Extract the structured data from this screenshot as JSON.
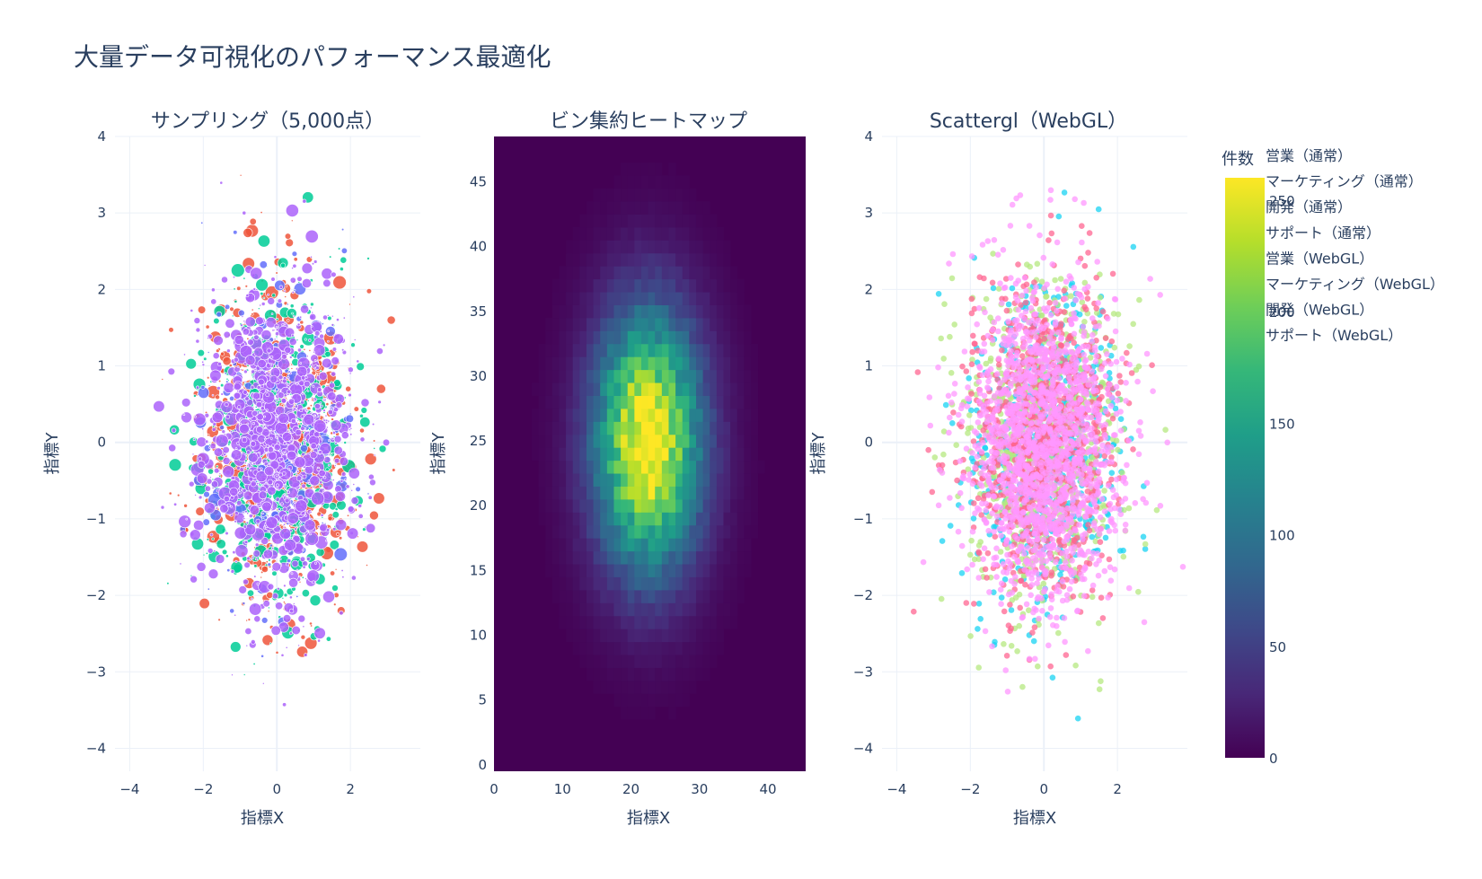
{
  "title": "大量データ可視化のパフォーマンス最適化",
  "colors": {
    "sales_normal": "#ef553b",
    "marketing_normal": "#00cc96",
    "dev_normal": "#ab63fa",
    "support_normal": "#636efa",
    "sales_webgl": "#ff6692",
    "marketing_webgl": "#b6e880",
    "dev_webgl": "#19d3f3",
    "support_webgl": "#ff97ff",
    "viridis": [
      "#440154",
      "#482878",
      "#3e4989",
      "#31688e",
      "#26828e",
      "#1f9e89",
      "#35b779",
      "#6ece58",
      "#b5de2b",
      "#fde725"
    ]
  },
  "chart_data": [
    {
      "type": "scatter",
      "title": "サンプリング（5,000点）",
      "xlabel": "指標X",
      "ylabel": "指標Y",
      "xlim": [
        -4.4,
        3.9
      ],
      "ylim": [
        -4.3,
        4.0
      ],
      "xticks": [
        "−4",
        "−2",
        "0",
        "2"
      ],
      "xtick_values": [
        -4,
        -2,
        0,
        2
      ],
      "yticks": [
        "−4",
        "−3",
        "−2",
        "−1",
        "0",
        "1",
        "2",
        "3",
        "4"
      ],
      "ytick_values": [
        -4,
        -3,
        -2,
        -1,
        0,
        1,
        2,
        3,
        4
      ],
      "grid": true,
      "series": [
        {
          "name": "営業（通常）",
          "x_mean": 0,
          "y_mean": 0,
          "x_std": 1,
          "y_std": 1
        },
        {
          "name": "マーケティング（通常）",
          "x_mean": 0,
          "y_mean": 0,
          "x_std": 1,
          "y_std": 1
        },
        {
          "name": "開発（通常）",
          "x_mean": 0,
          "y_mean": 0,
          "x_std": 1,
          "y_std": 1
        },
        {
          "name": "サポート（通常）",
          "x_mean": 0,
          "y_mean": 0,
          "x_std": 1,
          "y_std": 1
        }
      ],
      "total_points": 5000
    },
    {
      "type": "heatmap",
      "title": "ビン集約ヒートマップ",
      "xlabel": "指標X",
      "ylabel": "指標Y",
      "xlim": [
        0,
        45.5
      ],
      "ylim": [
        -0.5,
        48.5
      ],
      "xticks": [
        "0",
        "10",
        "20",
        "30",
        "40"
      ],
      "xtick_values": [
        0,
        10,
        20,
        30,
        40
      ],
      "yticks": [
        "0",
        "5",
        "10",
        "15",
        "20",
        "25",
        "30",
        "35",
        "40",
        "45"
      ],
      "ytick_values": [
        0,
        5,
        10,
        15,
        20,
        25,
        30,
        35,
        40,
        45
      ],
      "bins_x": 45,
      "bins_y": 48,
      "peak": [
        22.5,
        25
      ],
      "peak_value": 275,
      "spread_x": 5.3,
      "spread_y": 6.8,
      "colorbar": {
        "title": "件数",
        "range": [
          0,
          260
        ],
        "ticks": [
          "0",
          "50",
          "100",
          "150",
          "200",
          "250"
        ],
        "tick_values": [
          0,
          50,
          100,
          150,
          200,
          250
        ]
      }
    },
    {
      "type": "scatter",
      "title": "Scattergl（WebGL）",
      "xlabel": "指標X",
      "ylabel": "指標Y",
      "xlim": [
        -4.4,
        3.9
      ],
      "ylim": [
        -4.3,
        4.0
      ],
      "xticks": [
        "−4",
        "−2",
        "0",
        "2"
      ],
      "xtick_values": [
        -4,
        -2,
        0,
        2
      ],
      "yticks": [
        "−4",
        "−3",
        "−2",
        "−1",
        "0",
        "1",
        "2",
        "3",
        "4"
      ],
      "ytick_values": [
        -4,
        -3,
        -2,
        -1,
        0,
        1,
        2,
        3,
        4
      ],
      "grid": true,
      "series": [
        {
          "name": "営業（WebGL）",
          "x_mean": 0,
          "y_mean": 0,
          "x_std": 1,
          "y_std": 1
        },
        {
          "name": "マーケティング（WebGL）",
          "x_mean": 0,
          "y_mean": 0,
          "x_std": 1,
          "y_std": 1
        },
        {
          "name": "開発（WebGL）",
          "x_mean": 0,
          "y_mean": 0,
          "x_std": 1,
          "y_std": 1
        },
        {
          "name": "サポート（WebGL）",
          "x_mean": 0,
          "y_mean": 0,
          "x_std": 1,
          "y_std": 1
        }
      ]
    }
  ],
  "legend": {
    "items": [
      "営業（通常）",
      "マーケティング（通常）",
      "開発（通常）",
      "サポート（通常）",
      "営業（WebGL）",
      "マーケティング（WebGL）",
      "開発（WebGL）",
      "サポート（WebGL）"
    ]
  }
}
